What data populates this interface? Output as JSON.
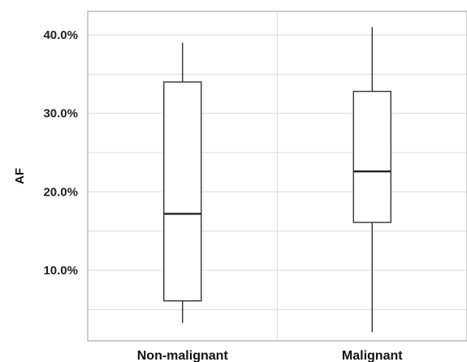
{
  "chart_data": {
    "type": "box",
    "categories": [
      "Non-malignant",
      "Malignant"
    ],
    "series": [
      {
        "boxes": [
          {
            "whisker_low": 3.3,
            "q1": 6.1,
            "median": 17.2,
            "q3": 34.0,
            "whisker_high": 39.0
          },
          {
            "whisker_low": 2.1,
            "q1": 16.1,
            "median": 22.6,
            "q3": 32.8,
            "whisker_high": 41.0
          }
        ]
      }
    ],
    "ylabel": "AF",
    "xlabel": "",
    "ylim": [
      1.0,
      43.0
    ],
    "yticks": [
      10,
      20,
      30,
      40
    ],
    "ytick_labels": [
      "10.0%",
      "20.0%",
      "30.0%",
      "40.0%"
    ],
    "grid": true,
    "legend": "none",
    "colors": {
      "box_fill": "#ffffff",
      "line": "#333333",
      "grid": "#dcdcdc",
      "frame": "#9a9a9a"
    }
  }
}
